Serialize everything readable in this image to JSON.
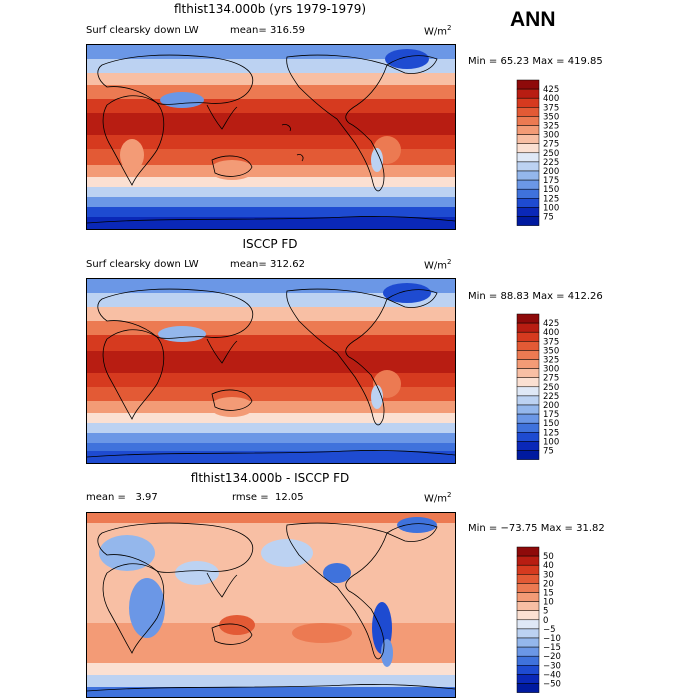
{
  "season": "ANN",
  "panels": [
    {
      "title": "flthist134.000b (yrs 1979-1979)",
      "variable": "Surf clearsky down LW",
      "stat_label": "mean=",
      "stat_value": "316.59",
      "units_base": "W/m",
      "units_exp": "2",
      "min_label": "Min =",
      "min": "65.23",
      "max_label": "Max =",
      "max": "419.85"
    },
    {
      "title": "ISCCP FD",
      "variable": "Surf clearsky down LW",
      "stat_label": "mean=",
      "stat_value": "312.62",
      "units_base": "W/m",
      "units_exp": "2",
      "min_label": "Min =",
      "min": "88.83",
      "max_label": "Max =",
      "max": "412.26"
    },
    {
      "title": "flthist134.000b - ISCCP FD",
      "mean_label": "mean =",
      "mean_value": "3.97",
      "rmse_label": "rmse =",
      "rmse_value": "12.05",
      "units_base": "W/m",
      "units_exp": "2",
      "min_label": "Min =",
      "min": "−73.75",
      "max_label": "Max =",
      "max": "31.82"
    }
  ],
  "chart_data": [
    {
      "type": "heatmap",
      "title": "flthist134.000b (yrs 1979-1979)",
      "variable": "Surf clearsky down LW",
      "units": "W/m2",
      "mean": 316.59,
      "min": 65.23,
      "max": 419.85,
      "colorbar_levels": [
        425,
        400,
        375,
        350,
        325,
        300,
        275,
        250,
        225,
        200,
        175,
        150,
        125,
        100,
        75
      ],
      "colorbar_colors": [
        "#8e0a0a",
        "#b81d12",
        "#d63a1f",
        "#e35a35",
        "#ec7a52",
        "#f39b76",
        "#f8bfa4",
        "#fbe0d2",
        "#dfe8f6",
        "#bcd2f2",
        "#94b7ec",
        "#6b97e6",
        "#3f72dc",
        "#1e4bd1",
        "#0a28b8",
        "#001aa0"
      ]
    },
    {
      "type": "heatmap",
      "title": "ISCCP FD",
      "variable": "Surf clearsky down LW",
      "units": "W/m2",
      "mean": 312.62,
      "min": 88.83,
      "max": 412.26,
      "colorbar_levels": [
        425,
        400,
        375,
        350,
        325,
        300,
        275,
        250,
        225,
        200,
        175,
        150,
        125,
        100,
        75
      ],
      "colorbar_colors": [
        "#8e0a0a",
        "#b81d12",
        "#d63a1f",
        "#e35a35",
        "#ec7a52",
        "#f39b76",
        "#f8bfa4",
        "#fbe0d2",
        "#dfe8f6",
        "#bcd2f2",
        "#94b7ec",
        "#6b97e6",
        "#3f72dc",
        "#1e4bd1",
        "#0a28b8",
        "#001aa0"
      ]
    },
    {
      "type": "heatmap",
      "title": "flthist134.000b - ISCCP FD",
      "units": "W/m2",
      "mean": 3.97,
      "rmse": 12.05,
      "min": -73.75,
      "max": 31.82,
      "colorbar_levels": [
        50,
        40,
        30,
        20,
        15,
        10,
        5,
        0,
        -5,
        -10,
        -15,
        -20,
        -30,
        -40,
        -50
      ],
      "colorbar_colors": [
        "#8e0a0a",
        "#b81d12",
        "#d63a1f",
        "#e35a35",
        "#ec7a52",
        "#f39b76",
        "#f8bfa4",
        "#fbe0d2",
        "#dfe8f6",
        "#bcd2f2",
        "#94b7ec",
        "#6b97e6",
        "#3f72dc",
        "#1e4bd1",
        "#0a28b8",
        "#001aa0"
      ]
    }
  ]
}
